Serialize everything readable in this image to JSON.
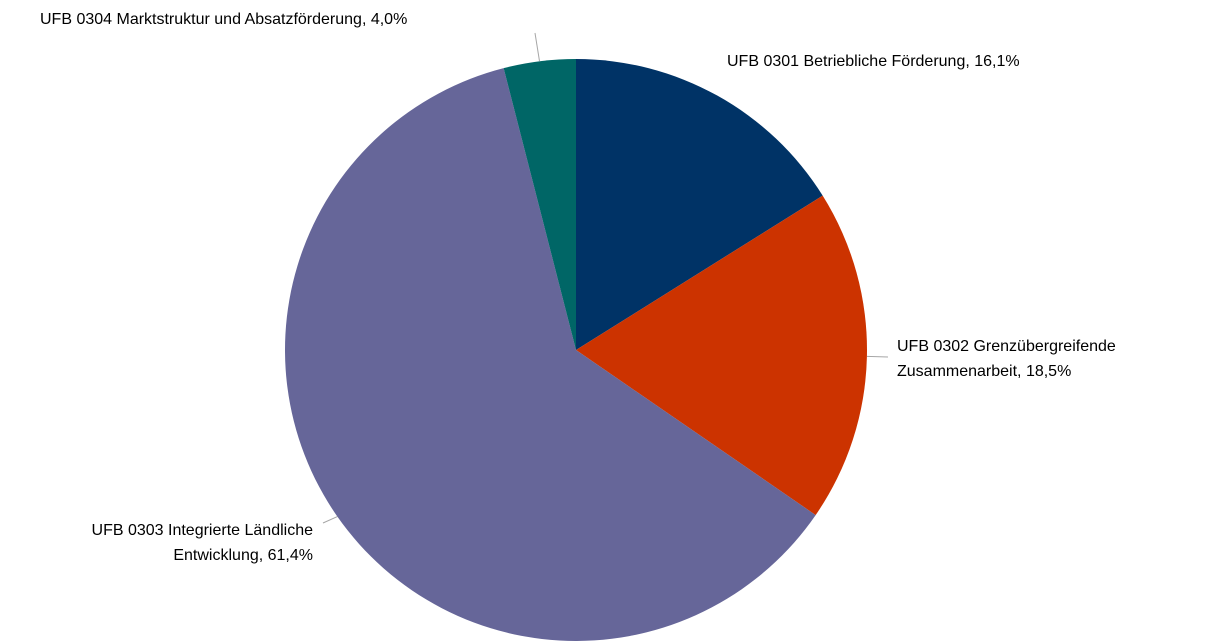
{
  "chart_data": {
    "type": "pie",
    "categories": [
      "UFB 0301 Betriebliche Förderung",
      "UFB 0302 Grenzübergreifende Zusammenarbeit",
      "UFB 0303 Integrierte Ländliche Entwicklung",
      "UFB 0304 Marktstruktur und Absatzförderung"
    ],
    "values": [
      16.1,
      18.5,
      61.4,
      4.0
    ],
    "value_labels": [
      "16,1%",
      "18,5%",
      "61,4%",
      "4,0%"
    ],
    "label_separator": ", ",
    "colors": [
      "#003366",
      "#cc3300",
      "#666699",
      "#006666"
    ]
  }
}
